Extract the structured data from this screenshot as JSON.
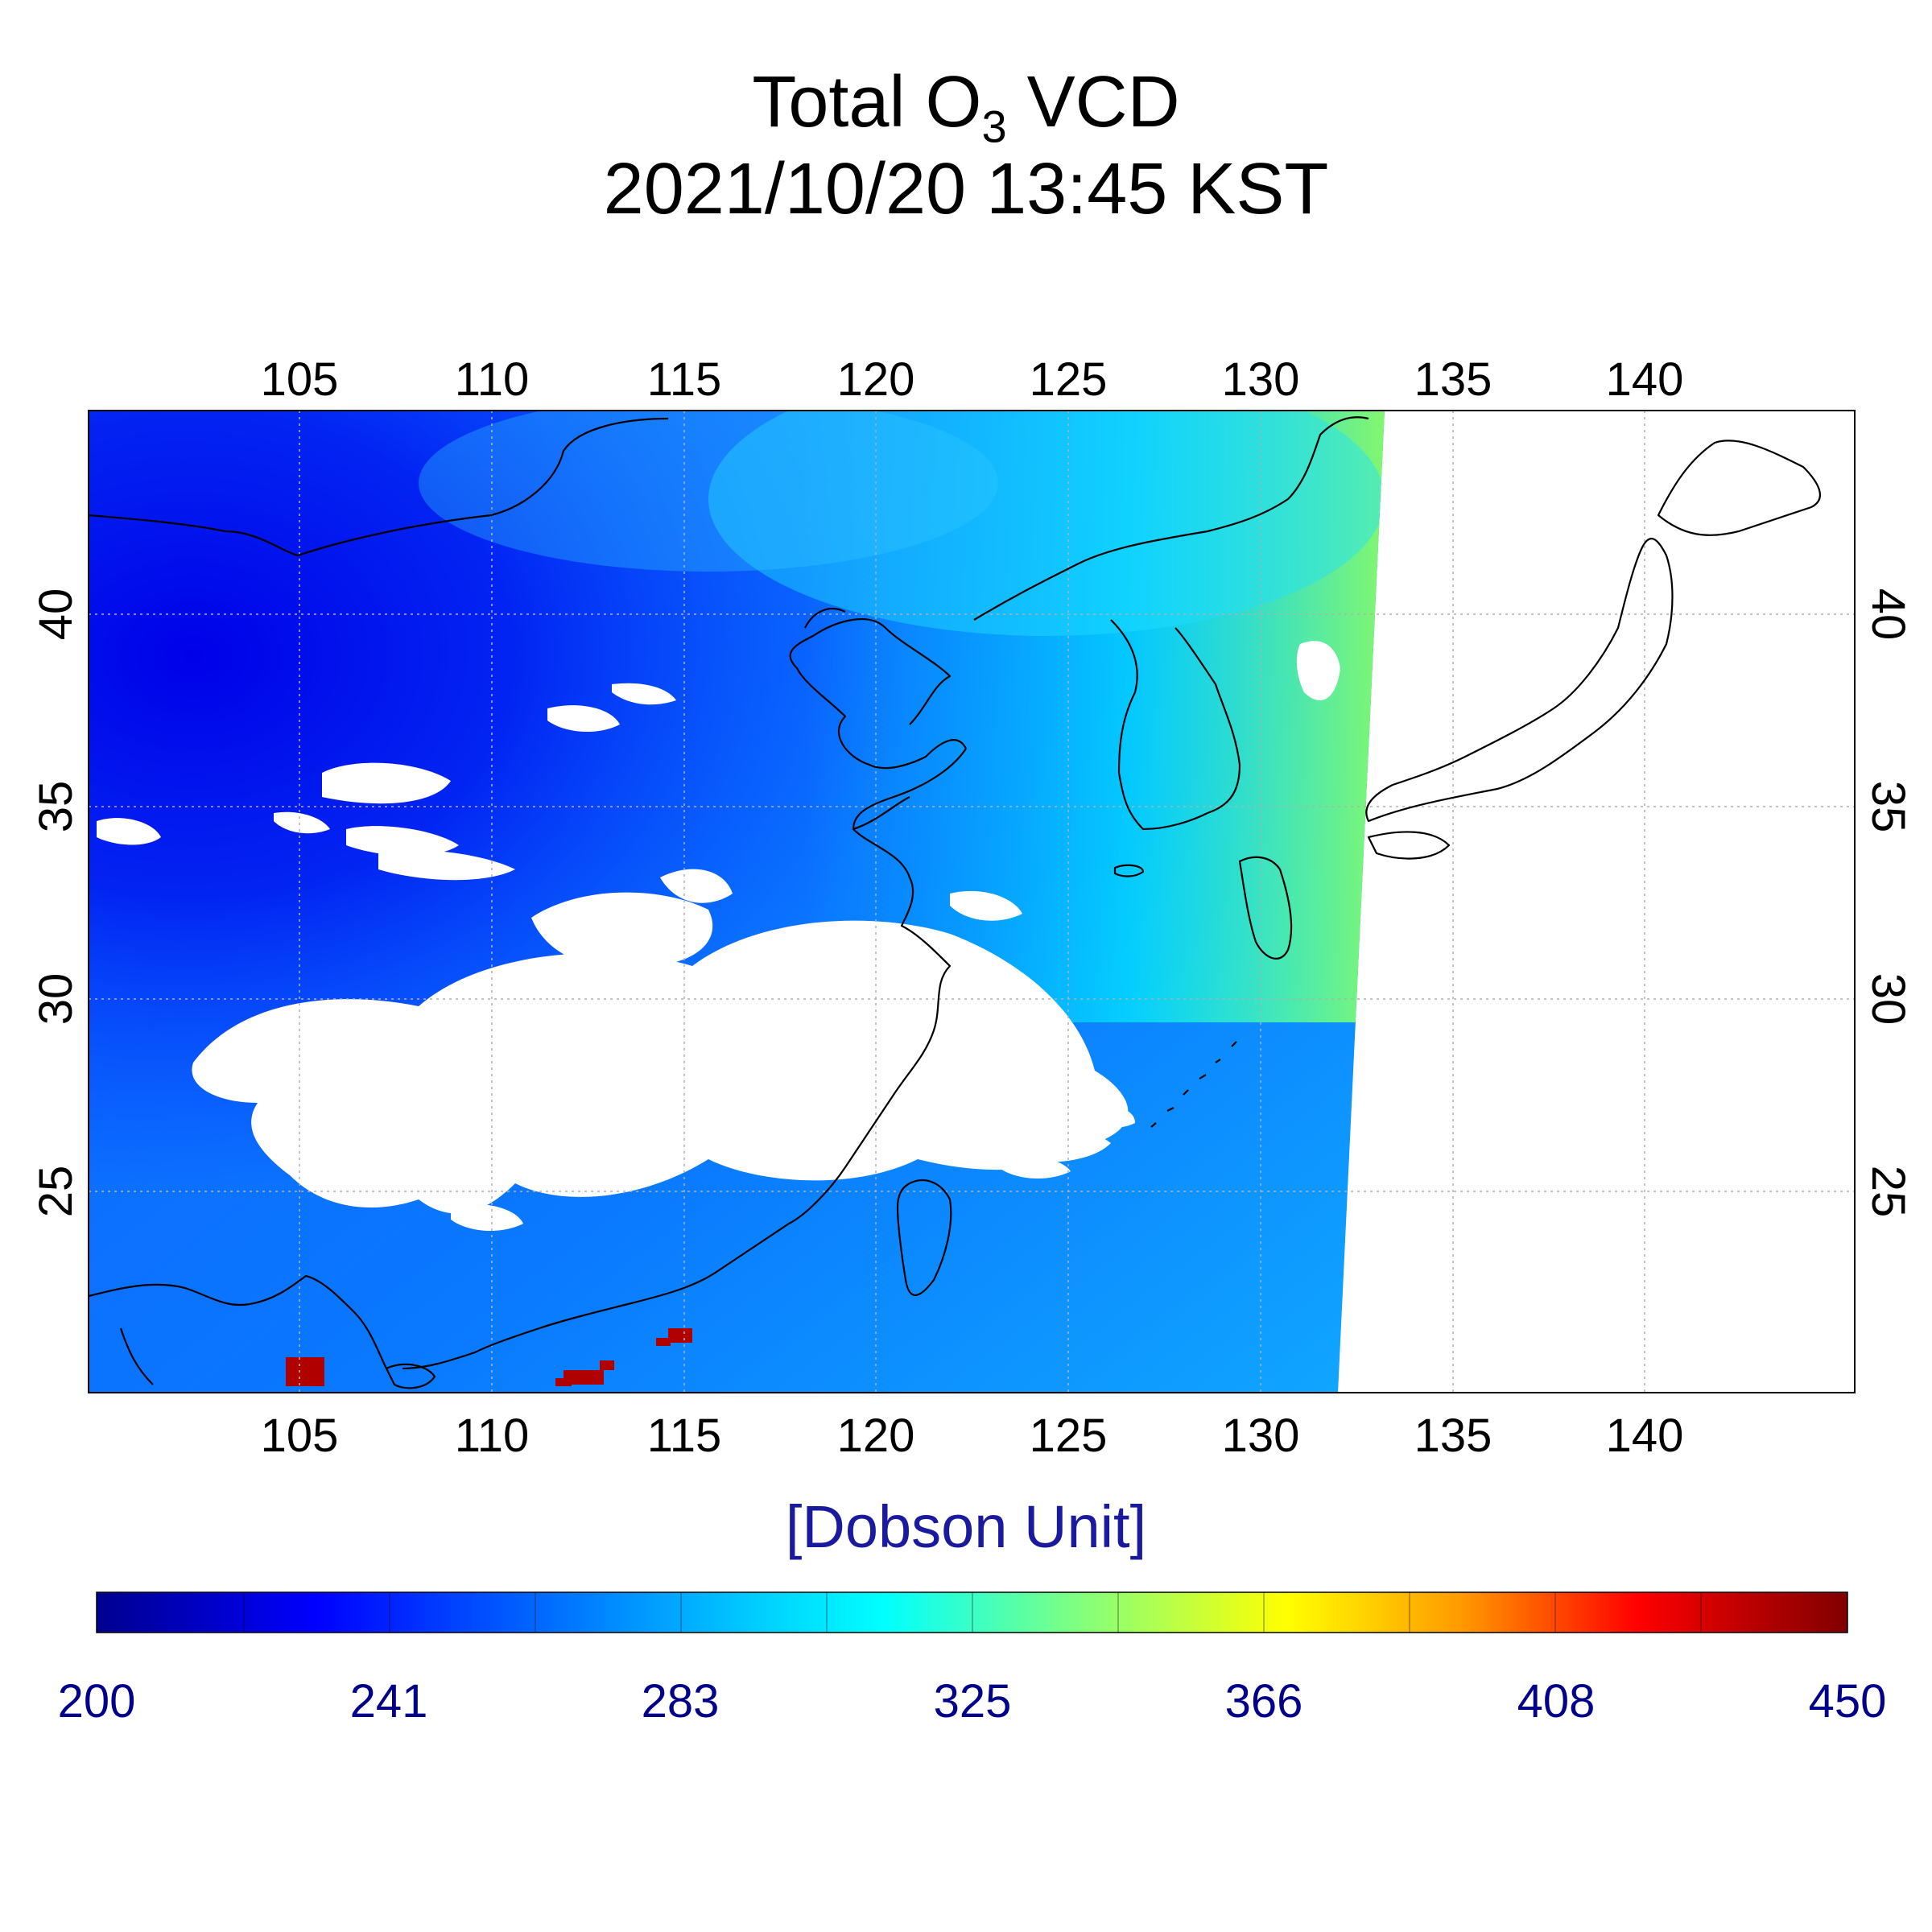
{
  "title": {
    "prefix": "Total O",
    "subscript": "3",
    "suffix": " VCD",
    "datetime": "2021/10/20 13:45 KST"
  },
  "map": {
    "lon_range": [
      100,
      146
    ],
    "lat_range": [
      20.5,
      45
    ],
    "grid": true,
    "lon_ticks": [
      "105",
      "110",
      "115",
      "120",
      "125",
      "130",
      "135",
      "140"
    ],
    "lat_ticks": [
      "25",
      "30",
      "35",
      "40"
    ],
    "regions_shown": [
      "China",
      "Mongolia",
      "Korea",
      "Japan",
      "Taiwan"
    ],
    "missing_data_color": "#ffffff"
  },
  "colorbar": {
    "label": "[Dobson Unit]",
    "min": 200,
    "max": 450,
    "ticks": [
      "200",
      "241",
      "283",
      "325",
      "366",
      "408",
      "450"
    ],
    "colors": [
      "#00008f",
      "#0000ff",
      "#0080ff",
      "#00ffff",
      "#80ff80",
      "#ffff00",
      "#ff8000",
      "#ff0000",
      "#800000"
    ]
  }
}
